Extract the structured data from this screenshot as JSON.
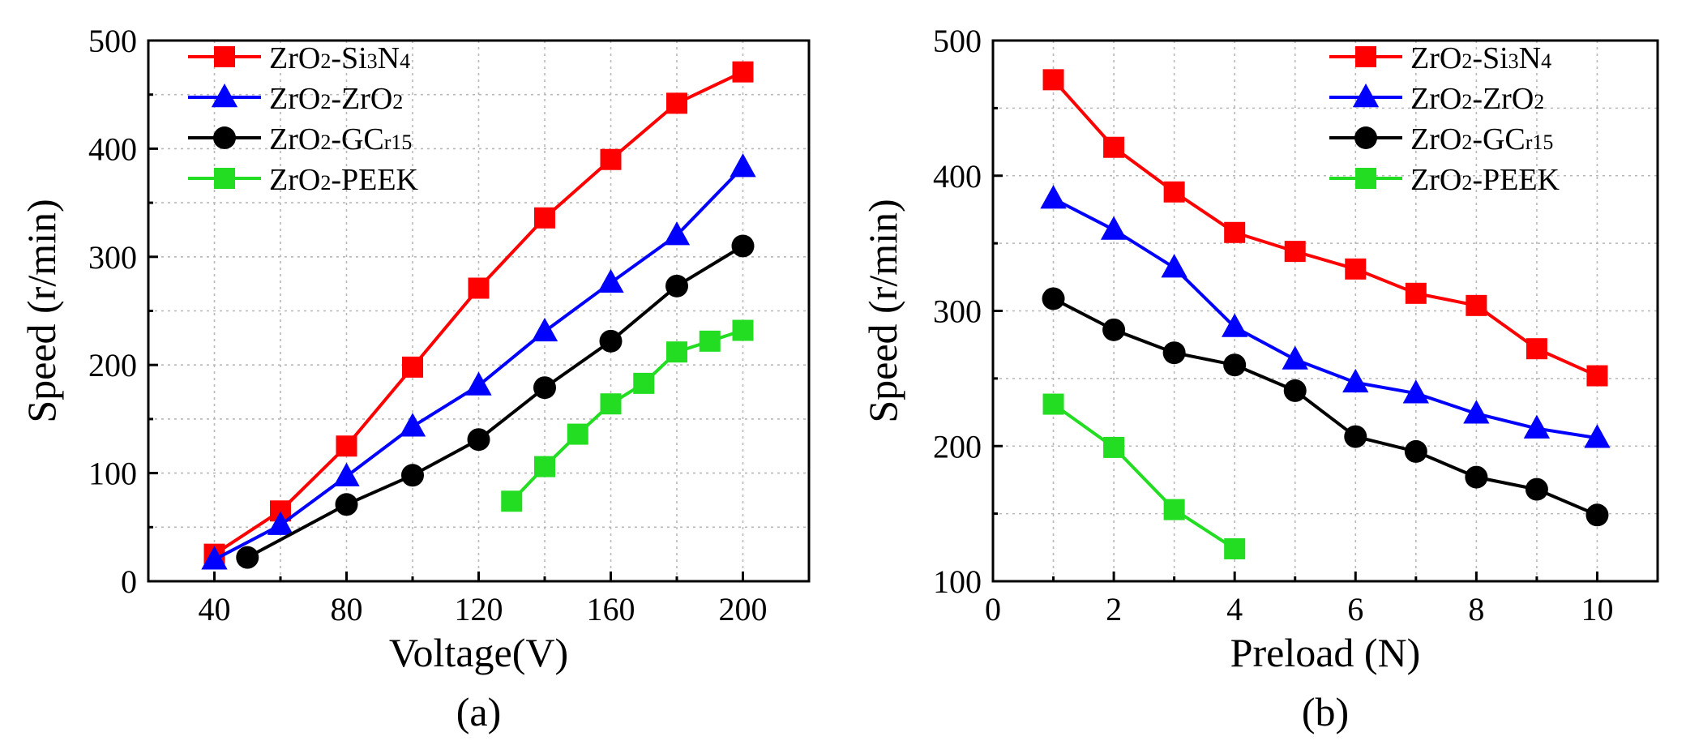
{
  "chart_data": [
    {
      "type": "line",
      "panel_label": "(a)",
      "title": "",
      "xlabel": "Voltage(V)",
      "ylabel": "Speed (r/min)",
      "xlim": [
        20,
        220
      ],
      "ylim": [
        0,
        500
      ],
      "xticks": [
        40,
        80,
        120,
        160,
        200
      ],
      "yticks": [
        0,
        100,
        200,
        300,
        400,
        500
      ],
      "grid": true,
      "legend_position": "top-left",
      "series": [
        {
          "name": "ZrO2-Si3N4",
          "legend": [
            {
              "t": "ZrO",
              "sub": false
            },
            {
              "t": "2",
              "sub": true
            },
            {
              "t": "-Si",
              "sub": false
            },
            {
              "t": "3",
              "sub": true
            },
            {
              "t": "N",
              "sub": false
            },
            {
              "t": "4",
              "sub": true
            }
          ],
          "color": "#ff0000",
          "marker": "square",
          "x": [
            40,
            60,
            80,
            100,
            120,
            140,
            160,
            180,
            200
          ],
          "y": [
            25,
            65,
            125,
            198,
            271,
            336,
            390,
            442,
            471
          ]
        },
        {
          "name": "ZrO2-ZrO2",
          "legend": [
            {
              "t": "ZrO",
              "sub": false
            },
            {
              "t": "2",
              "sub": true
            },
            {
              "t": "-ZrO",
              "sub": false
            },
            {
              "t": "2",
              "sub": true
            }
          ],
          "color": "#0000ff",
          "marker": "triangle",
          "x": [
            40,
            60,
            80,
            100,
            120,
            140,
            160,
            180,
            200
          ],
          "y": [
            20,
            52,
            97,
            143,
            181,
            231,
            276,
            320,
            383
          ]
        },
        {
          "name": "ZrO2-GCr15",
          "legend": [
            {
              "t": "ZrO",
              "sub": false
            },
            {
              "t": "2",
              "sub": true
            },
            {
              "t": "-GC",
              "sub": false
            },
            {
              "t": "r15",
              "sub": true
            }
          ],
          "color": "#000000",
          "marker": "circle",
          "x": [
            50,
            80,
            100,
            120,
            140,
            160,
            180,
            200
          ],
          "y": [
            22,
            71,
            98,
            131,
            179,
            222,
            273,
            310
          ]
        },
        {
          "name": "ZrO2-PEEK",
          "legend": [
            {
              "t": "ZrO",
              "sub": false
            },
            {
              "t": "2",
              "sub": true
            },
            {
              "t": "-PEEK",
              "sub": false
            }
          ],
          "color": "#22dd22",
          "marker": "square",
          "x": [
            130,
            140,
            150,
            160,
            170,
            180,
            190,
            200
          ],
          "y": [
            74,
            106,
            136,
            164,
            183,
            212,
            222,
            232
          ]
        }
      ]
    },
    {
      "type": "line",
      "panel_label": "(b)",
      "title": "",
      "xlabel": "Preload (N)",
      "ylabel": "Speed (r/min)",
      "xlim": [
        0,
        11
      ],
      "ylim": [
        100,
        500
      ],
      "xticks": [
        0,
        2,
        4,
        6,
        8,
        10
      ],
      "yticks": [
        100,
        200,
        300,
        400,
        500
      ],
      "grid": true,
      "legend_position": "top-right",
      "series": [
        {
          "name": "ZrO2-Si3N4",
          "legend": [
            {
              "t": "ZrO",
              "sub": false
            },
            {
              "t": "2",
              "sub": true
            },
            {
              "t": "-Si",
              "sub": false
            },
            {
              "t": "3",
              "sub": true
            },
            {
              "t": "N",
              "sub": false
            },
            {
              "t": "4",
              "sub": true
            }
          ],
          "color": "#ff0000",
          "marker": "square",
          "x": [
            1,
            2,
            3,
            4,
            5,
            6,
            7,
            8,
            9,
            10
          ],
          "y": [
            471,
            421,
            388,
            358,
            344,
            331,
            313,
            304,
            272,
            252
          ]
        },
        {
          "name": "ZrO2-ZrO2",
          "legend": [
            {
              "t": "ZrO",
              "sub": false
            },
            {
              "t": "2",
              "sub": true
            },
            {
              "t": "-ZrO",
              "sub": false
            },
            {
              "t": "2",
              "sub": true
            }
          ],
          "color": "#0000ff",
          "marker": "triangle",
          "x": [
            1,
            2,
            3,
            4,
            5,
            6,
            7,
            8,
            9,
            10
          ],
          "y": [
            383,
            360,
            332,
            288,
            264,
            247,
            239,
            224,
            213,
            206
          ]
        },
        {
          "name": "ZrO2-GCr15",
          "legend": [
            {
              "t": "ZrO",
              "sub": false
            },
            {
              "t": "2",
              "sub": true
            },
            {
              "t": "-GC",
              "sub": false
            },
            {
              "t": "r15",
              "sub": true
            }
          ],
          "color": "#000000",
          "marker": "circle",
          "x": [
            1,
            2,
            3,
            4,
            5,
            6,
            7,
            8,
            9,
            10
          ],
          "y": [
            309,
            286,
            269,
            260,
            241,
            207,
            196,
            177,
            168,
            149
          ]
        },
        {
          "name": "ZrO2-PEEK",
          "legend": [
            {
              "t": "ZrO",
              "sub": false
            },
            {
              "t": "2",
              "sub": true
            },
            {
              "t": "-PEEK",
              "sub": false
            }
          ],
          "color": "#22dd22",
          "marker": "square",
          "x": [
            1,
            2,
            3,
            4
          ],
          "y": [
            231,
            199,
            153,
            124
          ]
        }
      ]
    }
  ]
}
